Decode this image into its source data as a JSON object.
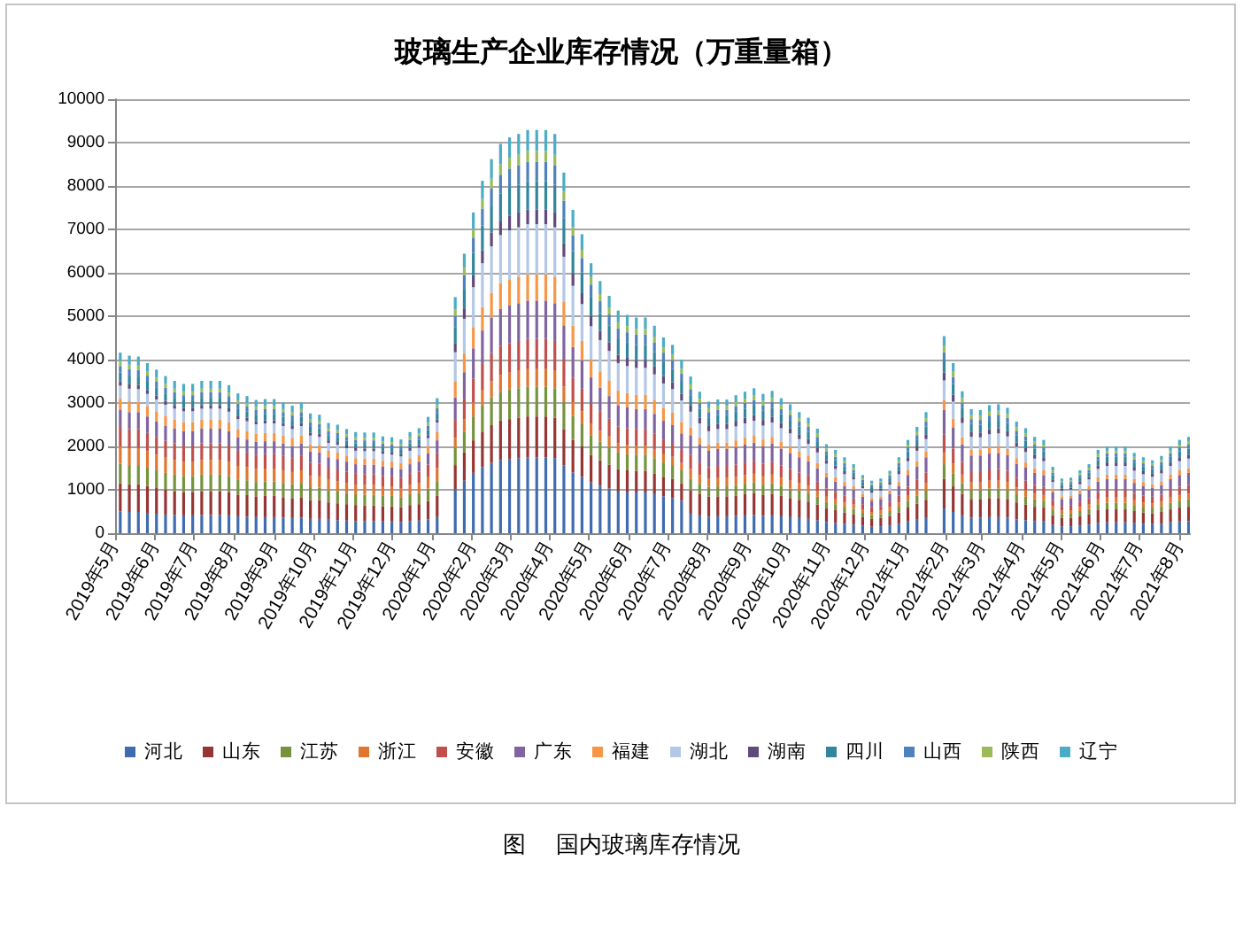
{
  "chart_data": {
    "type": "bar",
    "title": "玻璃生产企业库存情况（万重量箱）",
    "stacked": true,
    "grid": "y",
    "legend": "bottom",
    "annotations": [
      "图    国内玻璃库存情况"
    ],
    "xlim": [
      "2019-05-01",
      "2021-08-09"
    ],
    "xticks": [
      {
        "value": "2019-05",
        "label": "2019年5月"
      },
      {
        "value": "2019-06",
        "label": "2019年6月"
      },
      {
        "value": "2019-07",
        "label": "2019年7月"
      },
      {
        "value": "2019-08",
        "label": "2019年8月"
      },
      {
        "value": "2019-09",
        "label": "2019年9月"
      },
      {
        "value": "2019-10",
        "label": "2019年10月"
      },
      {
        "value": "2019-11",
        "label": "2019年11月"
      },
      {
        "value": "2019-12",
        "label": "2019年12月"
      },
      {
        "value": "2020-01",
        "label": "2020年1月"
      },
      {
        "value": "2020-02",
        "label": "2020年2月"
      },
      {
        "value": "2020-03",
        "label": "2020年3月"
      },
      {
        "value": "2020-04",
        "label": "2020年4月"
      },
      {
        "value": "2020-05",
        "label": "2020年5月"
      },
      {
        "value": "2020-06",
        "label": "2020年6月"
      },
      {
        "value": "2020-07",
        "label": "2020年7月"
      },
      {
        "value": "2020-08",
        "label": "2020年8月"
      },
      {
        "value": "2020-09",
        "label": "2020年9月"
      },
      {
        "value": "2020-10",
        "label": "2020年10月"
      },
      {
        "value": "2020-11",
        "label": "2020年11月"
      },
      {
        "value": "2020-12",
        "label": "2020年12月"
      },
      {
        "value": "2021-01",
        "label": "2021年1月"
      },
      {
        "value": "2021-02",
        "label": "2021年2月"
      },
      {
        "value": "2021-03",
        "label": "2021年3月"
      },
      {
        "value": "2021-04",
        "label": "2021年4月"
      },
      {
        "value": "2021-05",
        "label": "2021年5月"
      },
      {
        "value": "2021-06",
        "label": "2021年6月"
      },
      {
        "value": "2021-07",
        "label": "2021年7月"
      },
      {
        "value": "2021-08",
        "label": "2021年8月"
      }
    ],
    "ylim": [
      0,
      10000
    ],
    "yticks": [
      0,
      1000,
      2000,
      3000,
      4000,
      5000,
      6000,
      7000,
      8000,
      9000,
      10000
    ],
    "x": [
      "2019-05-05",
      "2019-05-12",
      "2019-05-19",
      "2019-05-26",
      "2019-06-02",
      "2019-06-09",
      "2019-06-16",
      "2019-06-23",
      "2019-06-30",
      "2019-07-07",
      "2019-07-14",
      "2019-07-21",
      "2019-07-28",
      "2019-08-04",
      "2019-08-11",
      "2019-08-18",
      "2019-08-25",
      "2019-09-01",
      "2019-09-08",
      "2019-09-15",
      "2019-09-22",
      "2019-09-29",
      "2019-10-06",
      "2019-10-13",
      "2019-10-20",
      "2019-10-27",
      "2019-11-03",
      "2019-11-10",
      "2019-11-17",
      "2019-11-24",
      "2019-12-01",
      "2019-12-08",
      "2019-12-15",
      "2019-12-22",
      "2019-12-29",
      "2020-01-05",
      "2020-01-19",
      "2020-01-26",
      "2020-02-02",
      "2020-02-09",
      "2020-02-16",
      "2020-02-23",
      "2020-03-01",
      "2020-03-08",
      "2020-03-15",
      "2020-03-22",
      "2020-03-29",
      "2020-04-05",
      "2020-04-12",
      "2020-04-19",
      "2020-04-26",
      "2020-05-03",
      "2020-05-10",
      "2020-05-17",
      "2020-05-24",
      "2020-05-31",
      "2020-06-07",
      "2020-06-14",
      "2020-06-21",
      "2020-06-28",
      "2020-07-05",
      "2020-07-12",
      "2020-07-19",
      "2020-07-26",
      "2020-08-02",
      "2020-08-09",
      "2020-08-16",
      "2020-08-23",
      "2020-08-30",
      "2020-09-06",
      "2020-09-13",
      "2020-09-20",
      "2020-09-27",
      "2020-10-04",
      "2020-10-11",
      "2020-10-18",
      "2020-10-25",
      "2020-11-01",
      "2020-11-08",
      "2020-11-15",
      "2020-11-22",
      "2020-11-29",
      "2020-12-06",
      "2020-12-13",
      "2020-12-20",
      "2020-12-27",
      "2021-01-03",
      "2021-01-10",
      "2021-01-17",
      "2021-01-31",
      "2021-02-07",
      "2021-02-14",
      "2021-02-21",
      "2021-02-28",
      "2021-03-07",
      "2021-03-14",
      "2021-03-21",
      "2021-03-28",
      "2021-04-04",
      "2021-04-11",
      "2021-04-18",
      "2021-04-25",
      "2021-05-02",
      "2021-05-09",
      "2021-05-16",
      "2021-05-23",
      "2021-05-30",
      "2021-06-06",
      "2021-06-13",
      "2021-06-20",
      "2021-06-27",
      "2021-07-04",
      "2021-07-11",
      "2021-07-18",
      "2021-07-25",
      "2021-08-01",
      "2021-08-08"
    ],
    "series": [
      {
        "name": "河北",
        "color": "#3f6caf",
        "values": [
          500,
          490,
          490,
          470,
          450,
          430,
          420,
          410,
          410,
          420,
          420,
          420,
          410,
          390,
          380,
          370,
          370,
          370,
          360,
          350,
          360,
          330,
          330,
          310,
          300,
          290,
          280,
          280,
          280,
          270,
          270,
          260,
          280,
          290,
          320,
          370,
          1020,
          1210,
          1390,
          1520,
          1620,
          1690,
          1710,
          1730,
          1750,
          1750,
          1750,
          1730,
          1560,
          1400,
          1300,
          1170,
          1090,
          1030,
          960,
          940,
          940,
          940,
          900,
          850,
          810,
          750,
          450,
          410,
          380,
          390,
          390,
          400,
          410,
          420,
          400,
          410,
          390,
          370,
          350,
          330,
          300,
          260,
          240,
          220,
          200,
          170,
          150,
          160,
          180,
          220,
          270,
          310,
          350,
          570,
          490,
          410,
          360,
          360,
          370,
          370,
          360,
          320,
          300,
          280,
          270,
          190,
          160,
          160,
          180,
          200,
          240,
          250,
          250,
          250,
          230,
          220,
          210,
          220,
          250,
          270,
          280
        ]
      },
      {
        "name": "山东",
        "color": "#963634",
        "values": [
          650,
          640,
          640,
          620,
          590,
          570,
          550,
          540,
          540,
          550,
          550,
          550,
          540,
          500,
          500,
          480,
          490,
          490,
          470,
          460,
          470,
          430,
          430,
          400,
          390,
          380,
          370,
          360,
          360,
          350,
          350,
          340,
          370,
          380,
          420,
          490,
          550,
          650,
          750,
          820,
          870,
          910,
          920,
          930,
          940,
          940,
          940,
          930,
          840,
          750,
          700,
          630,
          590,
          550,
          520,
          510,
          500,
          500,
          480,
          450,
          440,
          400,
          540,
          490,
          460,
          460,
          460,
          470,
          490,
          500,
          480,
          490,
          470,
          440,
          420,
          400,
          360,
          310,
          290,
          260,
          240,
          200,
          180,
          190,
          220,
          260,
          320,
          370,
          420,
          680,
          590,
          490,
          430,
          430,
          440,
          440,
          430,
          390,
          360,
          330,
          320,
          230,
          190,
          190,
          220,
          240,
          290,
          300,
          300,
          300,
          280,
          260,
          250,
          270,
          300,
          320,
          330
        ]
      },
      {
        "name": "江苏",
        "color": "#76923c",
        "values": [
          450,
          440,
          440,
          420,
          410,
          390,
          380,
          370,
          370,
          380,
          380,
          380,
          370,
          350,
          340,
          330,
          330,
          330,
          330,
          320,
          330,
          300,
          290,
          280,
          270,
          260,
          250,
          250,
          250,
          240,
          240,
          230,
          250,
          260,
          290,
          340,
          400,
          480,
          550,
          600,
          640,
          660,
          680,
          680,
          690,
          690,
          690,
          680,
          620,
          550,
          510,
          460,
          430,
          410,
          380,
          370,
          370,
          370,
          350,
          330,
          320,
          300,
          270,
          240,
          230,
          230,
          230,
          240,
          240,
          250,
          240,
          250,
          230,
          220,
          210,
          200,
          180,
          150,
          140,
          130,
          120,
          100,
          90,
          90,
          110,
          130,
          160,
          180,
          210,
          340,
          290,
          250,
          210,
          210,
          220,
          220,
          220,
          190,
          180,
          170,
          160,
          110,
          90,
          100,
          110,
          120,
          140,
          150,
          150,
          150,
          140,
          130,
          130,
          130,
          150,
          160,
          170
        ]
      },
      {
        "name": "浙江",
        "color": "#e1762e",
        "values": [
          400,
          390,
          390,
          380,
          360,
          350,
          340,
          330,
          330,
          340,
          340,
          340,
          330,
          310,
          300,
          300,
          300,
          300,
          290,
          280,
          290,
          260,
          260,
          240,
          240,
          230,
          220,
          220,
          220,
          220,
          210,
          210,
          220,
          230,
          260,
          300,
          230,
          280,
          320,
          350,
          370,
          390,
          390,
          400,
          400,
          400,
          400,
          400,
          360,
          320,
          300,
          270,
          250,
          240,
          220,
          220,
          210,
          210,
          210,
          190,
          190,
          170,
          220,
          200,
          180,
          190,
          190,
          190,
          200,
          200,
          190,
          200,
          190,
          180,
          170,
          160,
          140,
          120,
          110,
          100,
          100,
          80,
          70,
          80,
          90,
          100,
          130,
          150,
          170,
          270,
          230,
          200,
          170,
          170,
          180,
          180,
          170,
          150,
          150,
          130,
          130,
          90,
          80,
          80,
          90,
          100,
          110,
          120,
          120,
          120,
          110,
          100,
          100,
          110,
          120,
          130,
          130
        ]
      },
      {
        "name": "安徽",
        "color": "#c0504d",
        "values": [
          450,
          440,
          440,
          420,
          410,
          390,
          380,
          370,
          370,
          380,
          380,
          380,
          370,
          350,
          340,
          330,
          330,
          330,
          330,
          320,
          330,
          300,
          290,
          280,
          270,
          260,
          250,
          250,
          250,
          240,
          240,
          230,
          250,
          260,
          290,
          340,
          410,
          480,
          550,
          610,
          650,
          670,
          680,
          690,
          700,
          700,
          700,
          690,
          620,
          560,
          520,
          470,
          440,
          410,
          380,
          380,
          370,
          370,
          360,
          340,
          320,
          300,
          330,
          290,
          270,
          280,
          280,
          280,
          290,
          300,
          290,
          300,
          280,
          270,
          250,
          240,
          220,
          190,
          170,
          160,
          140,
          120,
          110,
          110,
          130,
          160,
          190,
          220,
          250,
          410,
          350,
          290,
          260,
          260,
          260,
          270,
          260,
          230,
          220,
          200,
          190,
          140,
          110,
          120,
          130,
          140,
          170,
          180,
          180,
          180,
          170,
          160,
          150,
          160,
          180,
          190,
          200
        ]
      },
      {
        "name": "广东",
        "color": "#8064a2",
        "values": [
          400,
          390,
          390,
          380,
          360,
          350,
          340,
          330,
          330,
          340,
          340,
          340,
          330,
          310,
          300,
          300,
          300,
          300,
          290,
          280,
          290,
          260,
          260,
          240,
          240,
          230,
          220,
          220,
          220,
          220,
          210,
          210,
          220,
          230,
          260,
          300,
          520,
          610,
          700,
          770,
          820,
          850,
          870,
          870,
          880,
          880,
          880,
          870,
          790,
          710,
          650,
          590,
          550,
          520,
          490,
          480,
          470,
          470,
          450,
          430,
          410,
          380,
          450,
          410,
          380,
          390,
          390,
          400,
          410,
          420,
          400,
          410,
          390,
          370,
          350,
          330,
          300,
          260,
          240,
          220,
          200,
          170,
          150,
          160,
          180,
          220,
          270,
          310,
          350,
          570,
          490,
          410,
          360,
          360,
          370,
          370,
          360,
          320,
          300,
          280,
          270,
          190,
          160,
          160,
          180,
          200,
          240,
          250,
          250,
          250,
          230,
          220,
          210,
          220,
          250,
          270,
          280
        ]
      },
      {
        "name": "福建",
        "color": "#f79646",
        "values": [
          250,
          250,
          240,
          240,
          230,
          220,
          210,
          210,
          210,
          210,
          210,
          210,
          200,
          190,
          190,
          180,
          190,
          190,
          180,
          180,
          180,
          170,
          160,
          150,
          150,
          140,
          140,
          140,
          140,
          130,
          130,
          130,
          140,
          150,
          160,
          190,
          360,
          430,
          490,
          540,
          570,
          590,
          600,
          610,
          610,
          610,
          610,
          610,
          550,
          490,
          450,
          410,
          380,
          360,
          340,
          330,
          330,
          330,
          320,
          300,
          290,
          260,
          180,
          160,
          150,
          150,
          150,
          160,
          160,
          170,
          160,
          160,
          160,
          150,
          140,
          130,
          120,
          100,
          100,
          90,
          80,
          70,
          60,
          60,
          70,
          90,
          110,
          120,
          140,
          230,
          200,
          160,
          140,
          140,
          150,
          150,
          140,
          130,
          120,
          110,
          110,
          80,
          60,
          60,
          70,
          80,
          100,
          100,
          100,
          100,
          90,
          90,
          80,
          90,
          100,
          110,
          110
        ]
      },
      {
        "name": "湖北",
        "color": "#b3c7e6",
        "values": [
          300,
          290,
          290,
          280,
          270,
          260,
          250,
          250,
          250,
          250,
          250,
          250,
          250,
          230,
          230,
          220,
          220,
          220,
          220,
          210,
          220,
          200,
          200,
          180,
          180,
          170,
          170,
          170,
          170,
          160,
          160,
          160,
          170,
          170,
          190,
          220,
          680,
          800,
          920,
          1010,
          1070,
          1110,
          1130,
          1140,
          1150,
          1150,
          1150,
          1140,
          1030,
          920,
          850,
          770,
          720,
          680,
          630,
          620,
          620,
          620,
          590,
          560,
          540,
          500,
          360,
          330,
          300,
          310,
          310,
          320,
          330,
          330,
          320,
          330,
          310,
          300,
          280,
          270,
          240,
          210,
          190,
          180,
          160,
          130,
          120,
          130,
          140,
          180,
          210,
          240,
          280,
          450,
          390,
          330,
          290,
          280,
          290,
          300,
          290,
          260,
          240,
          220,
          210,
          150,
          130,
          130,
          150,
          160,
          190,
          200,
          200,
          200,
          190,
          180,
          170,
          180,
          200,
          210,
          220
        ]
      },
      {
        "name": "湖南",
        "color": "#604a7b",
        "values": [
          100,
          100,
          100,
          90,
          90,
          90,
          80,
          80,
          80,
          80,
          80,
          80,
          80,
          80,
          80,
          70,
          70,
          70,
          70,
          70,
          70,
          70,
          70,
          60,
          60,
          60,
          60,
          60,
          60,
          50,
          50,
          50,
          60,
          60,
          60,
          70,
          200,
          240,
          270,
          300,
          320,
          330,
          340,
          340,
          340,
          340,
          340,
          340,
          310,
          280,
          250,
          230,
          210,
          200,
          190,
          190,
          180,
          180,
          180,
          170,
          160,
          150,
          140,
          130,
          120,
          120,
          120,
          130,
          130,
          130,
          130,
          130,
          120,
          120,
          110,
          110,
          100,
          80,
          80,
          70,
          60,
          50,
          50,
          50,
          60,
          70,
          90,
          100,
          110,
          180,
          160,
          130,
          110,
          110,
          120,
          120,
          120,
          100,
          100,
          90,
          90,
          60,
          50,
          50,
          60,
          60,
          80,
          80,
          80,
          80,
          70,
          70,
          70,
          70,
          80,
          90,
          90
        ]
      },
      {
        "name": "四川",
        "color": "#31859c",
        "values": [
          200,
          200,
          190,
          190,
          180,
          170,
          170,
          170,
          170,
          170,
          170,
          170,
          160,
          150,
          150,
          150,
          150,
          150,
          140,
          140,
          140,
          130,
          130,
          120,
          120,
          110,
          110,
          110,
          110,
          110,
          110,
          100,
          110,
          120,
          130,
          150,
          380,
          450,
          520,
          570,
          600,
          630,
          640,
          640,
          650,
          650,
          650,
          640,
          580,
          520,
          480,
          430,
          410,
          380,
          360,
          350,
          350,
          350,
          330,
          320,
          300,
          280,
          240,
          210,
          200,
          200,
          200,
          210,
          210,
          220,
          210,
          210,
          200,
          190,
          180,
          170,
          160,
          130,
          120,
          110,
          100,
          90,
          80,
          80,
          90,
          110,
          140,
          160,
          180,
          290,
          250,
          210,
          190,
          180,
          190,
          190,
          190,
          170,
          160,
          140,
          140,
          100,
          80,
          80,
          90,
          100,
          120,
          130,
          130,
          130,
          120,
          110,
          110,
          120,
          130,
          140,
          140
        ]
      },
      {
        "name": "山西",
        "color": "#4f81bd",
        "values": [
          150,
          150,
          150,
          140,
          140,
          130,
          130,
          120,
          120,
          130,
          130,
          130,
          120,
          120,
          110,
          110,
          110,
          110,
          110,
          110,
          110,
          100,
          100,
          90,
          90,
          90,
          80,
          80,
          80,
          80,
          80,
          80,
          80,
          90,
          100,
          110,
          260,
          310,
          350,
          390,
          410,
          430,
          440,
          440,
          450,
          450,
          450,
          440,
          400,
          360,
          330,
          300,
          280,
          260,
          250,
          240,
          240,
          240,
          230,
          220,
          210,
          190,
          140,
          130,
          120,
          120,
          120,
          130,
          130,
          130,
          130,
          130,
          120,
          120,
          110,
          110,
          100,
          80,
          80,
          70,
          60,
          50,
          50,
          50,
          60,
          70,
          90,
          100,
          110,
          180,
          160,
          130,
          110,
          110,
          120,
          120,
          120,
          100,
          100,
          90,
          90,
          60,
          50,
          50,
          60,
          60,
          80,
          80,
          80,
          80,
          70,
          70,
          70,
          70,
          80,
          90,
          90
        ]
      },
      {
        "name": "陕西",
        "color": "#9bbb59",
        "values": [
          100,
          100,
          100,
          90,
          90,
          90,
          80,
          80,
          80,
          80,
          80,
          80,
          80,
          80,
          80,
          70,
          70,
          70,
          70,
          70,
          70,
          70,
          70,
          60,
          60,
          60,
          60,
          60,
          60,
          50,
          50,
          50,
          60,
          60,
          60,
          70,
          150,
          170,
          200,
          220,
          230,
          240,
          250,
          250,
          250,
          250,
          250,
          250,
          220,
          200,
          190,
          170,
          160,
          150,
          140,
          140,
          130,
          130,
          130,
          120,
          120,
          110,
          110,
          100,
          90,
          90,
          90,
          90,
          100,
          100,
          100,
          100,
          90,
          90,
          80,
          80,
          70,
          60,
          60,
          50,
          50,
          40,
          40,
          40,
          40,
          50,
          60,
          70,
          80,
          140,
          120,
          100,
          90,
          90,
          90,
          90,
          90,
          80,
          70,
          70,
          60,
          50,
          40,
          40,
          40,
          50,
          60,
          60,
          60,
          60,
          60,
          50,
          50,
          50,
          60,
          60,
          70
        ]
      },
      {
        "name": "辽宁",
        "color": "#4bacc6",
        "values": [
          210,
          210,
          210,
          200,
          190,
          180,
          180,
          180,
          180,
          180,
          180,
          180,
          170,
          160,
          160,
          160,
          160,
          160,
          150,
          150,
          150,
          140,
          140,
          130,
          130,
          120,
          120,
          120,
          120,
          110,
          110,
          110,
          120,
          120,
          140,
          160,
          280,
          330,
          380,
          420,
          450,
          470,
          470,
          480,
          480,
          480,
          480,
          480,
          430,
          390,
          360,
          320,
          300,
          280,
          270,
          260,
          260,
          260,
          250,
          230,
          230,
          210,
          180,
          160,
          150,
          150,
          150,
          160,
          160,
          170,
          160,
          160,
          160,
          150,
          140,
          130,
          120,
          100,
          100,
          90,
          80,
          70,
          60,
          60,
          70,
          90,
          110,
          120,
          140,
          230,
          200,
          160,
          140,
          140,
          150,
          150,
          140,
          130,
          120,
          110,
          110,
          80,
          60,
          60,
          70,
          80,
          100,
          100,
          100,
          100,
          90,
          90,
          80,
          90,
          100,
          110,
          110
        ]
      }
    ]
  }
}
